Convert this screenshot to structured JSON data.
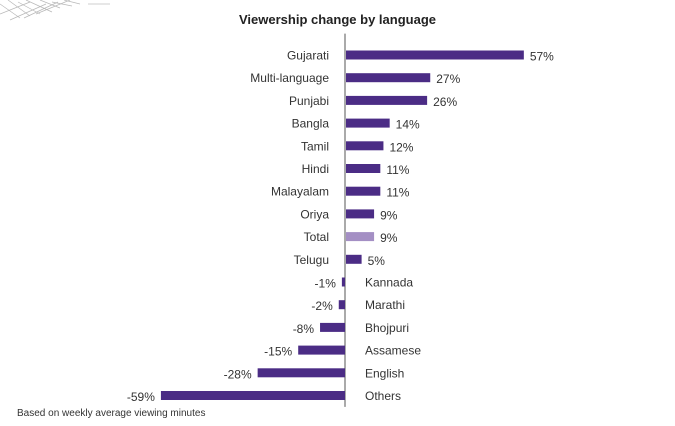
{
  "chart_data": {
    "type": "bar",
    "orientation": "horizontal",
    "title": "Viewership change by language",
    "footnote": "Based on weekly average viewing minutes",
    "categories": [
      "Gujarati",
      "Multi-language",
      "Punjabi",
      "Bangla",
      "Tamil",
      "Hindi",
      "Malayalam",
      "Oriya",
      "Total",
      "Telugu",
      "Kannada",
      "Marathi",
      "Bhojpuri",
      "Assamese",
      "English",
      "Others"
    ],
    "values": [
      57,
      27,
      26,
      14,
      12,
      11,
      11,
      9,
      9,
      5,
      -1,
      -2,
      -8,
      -15,
      -28,
      -59
    ],
    "data_labels": [
      "57%",
      "27%",
      "26%",
      "14%",
      "12%",
      "11%",
      "11%",
      "9%",
      "9%",
      "5%",
      "-1%",
      "-2%",
      "-8%",
      "-15%",
      "-28%",
      "-59%"
    ],
    "highlight_category": "Total",
    "colors": {
      "bar": "#4b2c85",
      "highlight": "#a48fc4",
      "axis": "#555555"
    },
    "xlim": [
      -60,
      58
    ]
  }
}
